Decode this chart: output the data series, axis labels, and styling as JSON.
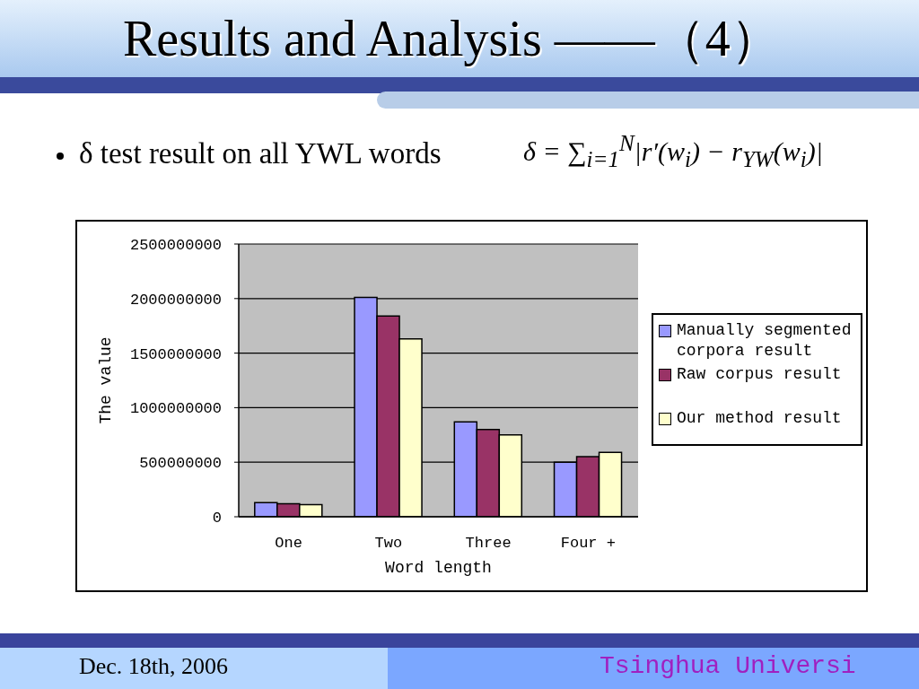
{
  "chart_data": {
    "type": "bar",
    "title": "Results and Analysis ——（4）",
    "subtitle": "δ test result on all YWL words",
    "xlabel": "Word length",
    "ylabel": "The value",
    "categories": [
      "One",
      "Two",
      "Three",
      "Four +"
    ],
    "series": [
      {
        "name": "Manually segmented corpora result",
        "color": "#9999ff",
        "values": [
          130000000,
          2010000000,
          870000000,
          500000000
        ]
      },
      {
        "name": "Raw corpus result",
        "color": "#993366",
        "values": [
          120000000,
          1840000000,
          800000000,
          550000000
        ]
      },
      {
        "name": "Our method result",
        "color": "#ffffcc",
        "values": [
          110000000,
          1630000000,
          750000000,
          590000000
        ]
      }
    ],
    "ylim": [
      0,
      2500000000
    ],
    "yticks": [
      0,
      500000000,
      1000000000,
      1500000000,
      2000000000,
      2500000000
    ],
    "grid": "y",
    "legend": "right",
    "annotations": [
      "δ = ∑$_{i=1}$$^{N}$|r′(w$_{i}$) − r$_{YW}$(w$_{i}$)|",
      "Dec. 18th, 2006",
      "Tsinghua Universi"
    ]
  }
}
